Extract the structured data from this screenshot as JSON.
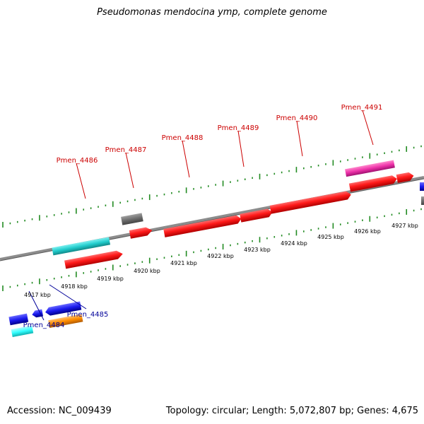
{
  "title": "Pseudomonas mendocina ymp, complete genome",
  "footer": {
    "accession": "Accession: NC_009439",
    "summary": "Topology: circular; Length: 5,072,807 bp; Genes: 4,675"
  },
  "colors": {
    "backbone": "#8c8c8c",
    "tick": "#228b22",
    "red": "#ff1a1a",
    "cyan": "#22cccc",
    "gray": "#6e6e6e",
    "magenta": "#ee33aa",
    "blue": "#1a1aee",
    "orange": "#ff8c00",
    "light_cyan": "#33ffff",
    "upper_label": "#cc0000",
    "lower_label": "#000099"
  },
  "kbp_labels": [
    "4917 kbp",
    "4918 kbp",
    "4919 kbp",
    "4920 kbp",
    "4921 kbp",
    "4922 kbp",
    "4923 kbp",
    "4924 kbp",
    "4925 kbp",
    "4926 kbp",
    "4927 kbp"
  ],
  "gene_labels_upper": [
    "Pmen_4486",
    "Pmen_4487",
    "Pmen_4488",
    "Pmen_4489",
    "Pmen_4490",
    "Pmen_4491"
  ],
  "gene_labels_lower": [
    "Pmen_4484",
    "Pmen_4485"
  ]
}
